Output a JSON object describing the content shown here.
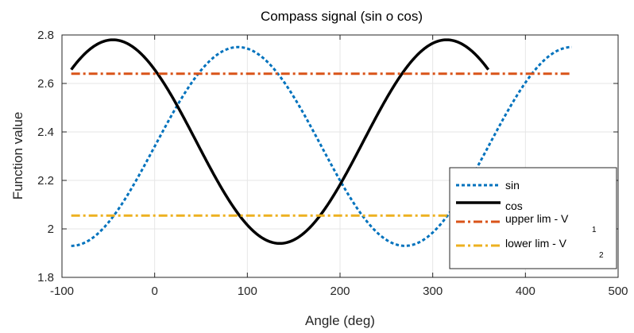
{
  "chart_data": {
    "type": "line",
    "title": "Compass signal (sin o cos)",
    "xlabel": "Angle (deg)",
    "ylabel": "Function value",
    "xlim": [
      -100,
      500
    ],
    "ylim": [
      1.8,
      2.8
    ],
    "xticks": [
      -100,
      0,
      100,
      200,
      300,
      400,
      500
    ],
    "yticks": [
      1.8,
      2,
      2.2,
      2.4,
      2.6,
      2.8
    ],
    "xtick_labels": [
      "-100",
      "0",
      "100",
      "200",
      "300",
      "400",
      "500"
    ],
    "ytick_labels": [
      "1.8",
      "2",
      "2.2",
      "2.4",
      "2.6",
      "2.8"
    ],
    "grid": true,
    "legend_position": "bottom-right",
    "series": [
      {
        "name": "sin",
        "legend_label": "sin",
        "color": "#0072BD",
        "style": "dotted",
        "function": "sin",
        "offset": 2.34,
        "amplitude": 0.41,
        "x_start": -90,
        "x_end": 450
      },
      {
        "name": "cos",
        "legend_label": "cos",
        "color": "#000000",
        "style": "solid",
        "function": "cos",
        "offset": 2.36,
        "amplitude": 0.42,
        "phase_deg": 45,
        "x_start": -90,
        "x_end": 360
      },
      {
        "name": "upper lim - V1",
        "legend_label": "upper lim - V",
        "legend_subscript": "1",
        "color": "#D95319",
        "style": "dashdot",
        "function": "constant",
        "value": 2.64,
        "x_start": -90,
        "x_end": 450
      },
      {
        "name": "lower lim - V2",
        "legend_label": "lower lim - V",
        "legend_subscript": "2",
        "color": "#EDB120",
        "style": "dashdot",
        "function": "constant",
        "value": 2.055,
        "x_start": -90,
        "x_end": 450
      }
    ]
  }
}
